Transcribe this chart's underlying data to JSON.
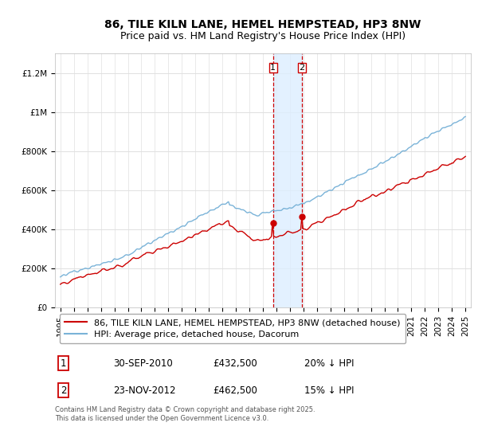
{
  "title": "86, TILE KILN LANE, HEMEL HEMPSTEAD, HP3 8NW",
  "subtitle": "Price paid vs. HM Land Registry's House Price Index (HPI)",
  "ylim": [
    0,
    1300000
  ],
  "yticks": [
    0,
    200000,
    400000,
    600000,
    800000,
    1000000,
    1200000
  ],
  "ytick_labels": [
    "£0",
    "£200K",
    "£400K",
    "£600K",
    "£800K",
    "£1M",
    "£1.2M"
  ],
  "background_color": "#ffffff",
  "plot_bg_color": "#ffffff",
  "grid_color": "#e0e0e0",
  "hpi_color": "#7ab3d8",
  "price_color": "#cc0000",
  "sale1_x": 2010.75,
  "sale2_x": 2012.9,
  "sale1_price": 432500,
  "sale2_price": 462500,
  "shade_color": "#ddeeff",
  "dashed_color": "#cc0000",
  "legend_label_price": "86, TILE KILN LANE, HEMEL HEMPSTEAD, HP3 8NW (detached house)",
  "legend_label_hpi": "HPI: Average price, detached house, Dacorum",
  "table_row1": [
    "1",
    "30-SEP-2010",
    "£432,500",
    "20% ↓ HPI"
  ],
  "table_row2": [
    "2",
    "23-NOV-2012",
    "£462,500",
    "15% ↓ HPI"
  ],
  "footer": "Contains HM Land Registry data © Crown copyright and database right 2025.\nThis data is licensed under the Open Government Licence v3.0.",
  "title_fontsize": 10,
  "subtitle_fontsize": 9,
  "tick_fontsize": 7.5,
  "legend_fontsize": 8
}
